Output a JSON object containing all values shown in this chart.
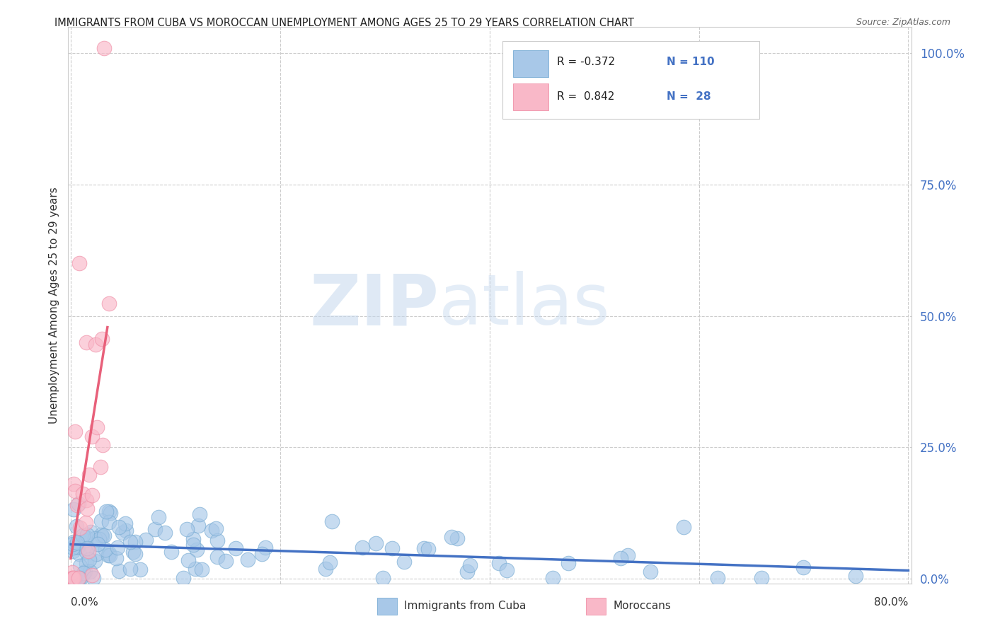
{
  "title": "IMMIGRANTS FROM CUBA VS MOROCCAN UNEMPLOYMENT AMONG AGES 25 TO 29 YEARS CORRELATION CHART",
  "source": "Source: ZipAtlas.com",
  "ylabel": "Unemployment Among Ages 25 to 29 years",
  "right_yticks": [
    "0.0%",
    "25.0%",
    "50.0%",
    "75.0%",
    "100.0%"
  ],
  "right_ytick_vals": [
    0.0,
    0.25,
    0.5,
    0.75,
    1.0
  ],
  "watermark_zip": "ZIP",
  "watermark_atlas": "atlas",
  "cuba_color": "#a8c8e8",
  "cuba_edge": "#7aadd4",
  "morocco_color": "#f9b8c8",
  "morocco_edge": "#f090a8",
  "trendline_cuba_color": "#4472c4",
  "trendline_morocco_color": "#e8607a",
  "cuba_R": -0.372,
  "cuba_N": 110,
  "morocco_R": 0.842,
  "morocco_N": 28,
  "xmin": 0.0,
  "xmax": 0.8,
  "ymin": -0.01,
  "ymax": 1.05,
  "background_color": "#ffffff",
  "grid_color": "#cccccc",
  "legend_r1": "R = -0.372",
  "legend_n1": "N = 110",
  "legend_r2": "R =  0.842",
  "legend_n2": "N =  28",
  "legend_color_blue": "#4472c4",
  "legend_color_black": "#222222"
}
